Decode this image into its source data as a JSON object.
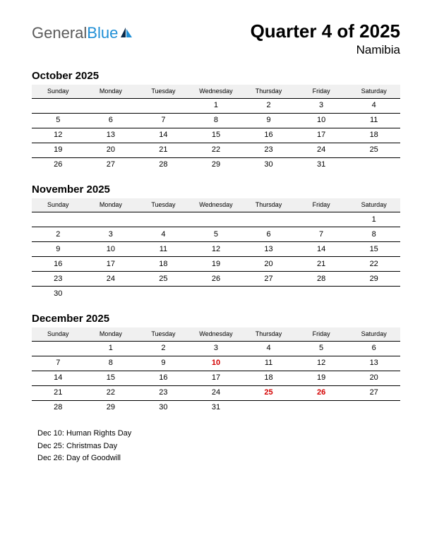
{
  "logo": {
    "word1": "General",
    "word2": "Blue"
  },
  "header": {
    "quarter": "Quarter 4 of 2025",
    "country": "Namibia"
  },
  "dayHeaders": [
    "Sunday",
    "Monday",
    "Tuesday",
    "Wednesday",
    "Thursday",
    "Friday",
    "Saturday"
  ],
  "months": [
    {
      "title": "October 2025",
      "weeks": [
        [
          "",
          "",
          "",
          "1",
          "2",
          "3",
          "4"
        ],
        [
          "5",
          "6",
          "7",
          "8",
          "9",
          "10",
          "11"
        ],
        [
          "12",
          "13",
          "14",
          "15",
          "16",
          "17",
          "18"
        ],
        [
          "19",
          "20",
          "21",
          "22",
          "23",
          "24",
          "25"
        ],
        [
          "26",
          "27",
          "28",
          "29",
          "30",
          "31",
          ""
        ]
      ],
      "holidays": []
    },
    {
      "title": "November 2025",
      "weeks": [
        [
          "",
          "",
          "",
          "",
          "",
          "",
          "1"
        ],
        [
          "2",
          "3",
          "4",
          "5",
          "6",
          "7",
          "8"
        ],
        [
          "9",
          "10",
          "11",
          "12",
          "13",
          "14",
          "15"
        ],
        [
          "16",
          "17",
          "18",
          "19",
          "20",
          "21",
          "22"
        ],
        [
          "23",
          "24",
          "25",
          "26",
          "27",
          "28",
          "29"
        ],
        [
          "30",
          "",
          "",
          "",
          "",
          "",
          ""
        ]
      ],
      "holidays": []
    },
    {
      "title": "December 2025",
      "weeks": [
        [
          "",
          "1",
          "2",
          "3",
          "4",
          "5",
          "6"
        ],
        [
          "7",
          "8",
          "9",
          "10",
          "11",
          "12",
          "13"
        ],
        [
          "14",
          "15",
          "16",
          "17",
          "18",
          "19",
          "20"
        ],
        [
          "21",
          "22",
          "23",
          "24",
          "25",
          "26",
          "27"
        ],
        [
          "28",
          "29",
          "30",
          "31",
          "",
          "",
          ""
        ]
      ],
      "holidays": [
        "10",
        "25",
        "26"
      ]
    }
  ],
  "holidayList": [
    "Dec 10: Human Rights Day",
    "Dec 25: Christmas Day",
    "Dec 26: Day of Goodwill"
  ],
  "colors": {
    "holiday_text": "#d40000",
    "header_bg": "#f0f0f0",
    "border": "#000000",
    "logo_gray": "#5a5a5a",
    "logo_blue": "#1f8fd6"
  }
}
